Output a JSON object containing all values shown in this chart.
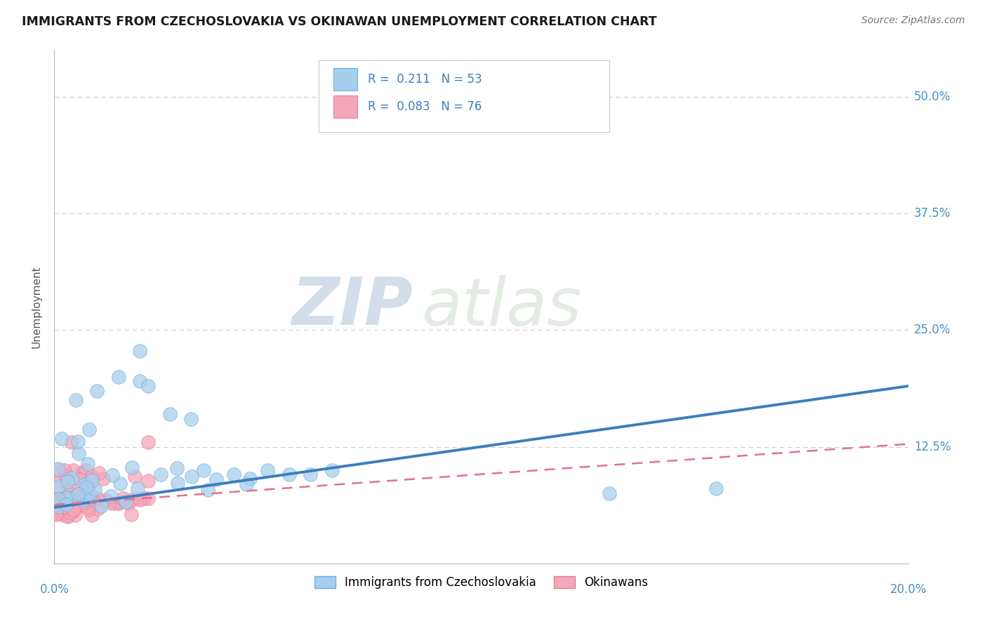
{
  "title": "IMMIGRANTS FROM CZECHOSLOVAKIA VS OKINAWAN UNEMPLOYMENT CORRELATION CHART",
  "source": "Source: ZipAtlas.com",
  "ylabel": "Unemployment",
  "y_tick_labels": [
    "12.5%",
    "25.0%",
    "37.5%",
    "50.0%"
  ],
  "y_tick_values": [
    0.125,
    0.25,
    0.375,
    0.5
  ],
  "x_range": [
    0.0,
    0.2
  ],
  "y_range": [
    0.0,
    0.55
  ],
  "color_blue": "#A8CEED",
  "color_pink": "#F4A7B9",
  "color_blue_edge": "#6AAFD6",
  "color_pink_edge": "#E87A9A",
  "color_blue_line": "#3B7EC0",
  "color_pink_line": "#E07090",
  "watermark_zip": "ZIP",
  "watermark_atlas": "atlas",
  "grid_color": "#CCCCCC",
  "axis_color": "#BBBBBB",
  "bg_color": "#FFFFFF",
  "blue_trend_x0": 0.0,
  "blue_trend_y0": 0.06,
  "blue_trend_x1": 0.2,
  "blue_trend_y1": 0.19,
  "pink_trend_x0": 0.0,
  "pink_trend_y0": 0.063,
  "pink_trend_x1": 0.2,
  "pink_trend_y1": 0.128
}
